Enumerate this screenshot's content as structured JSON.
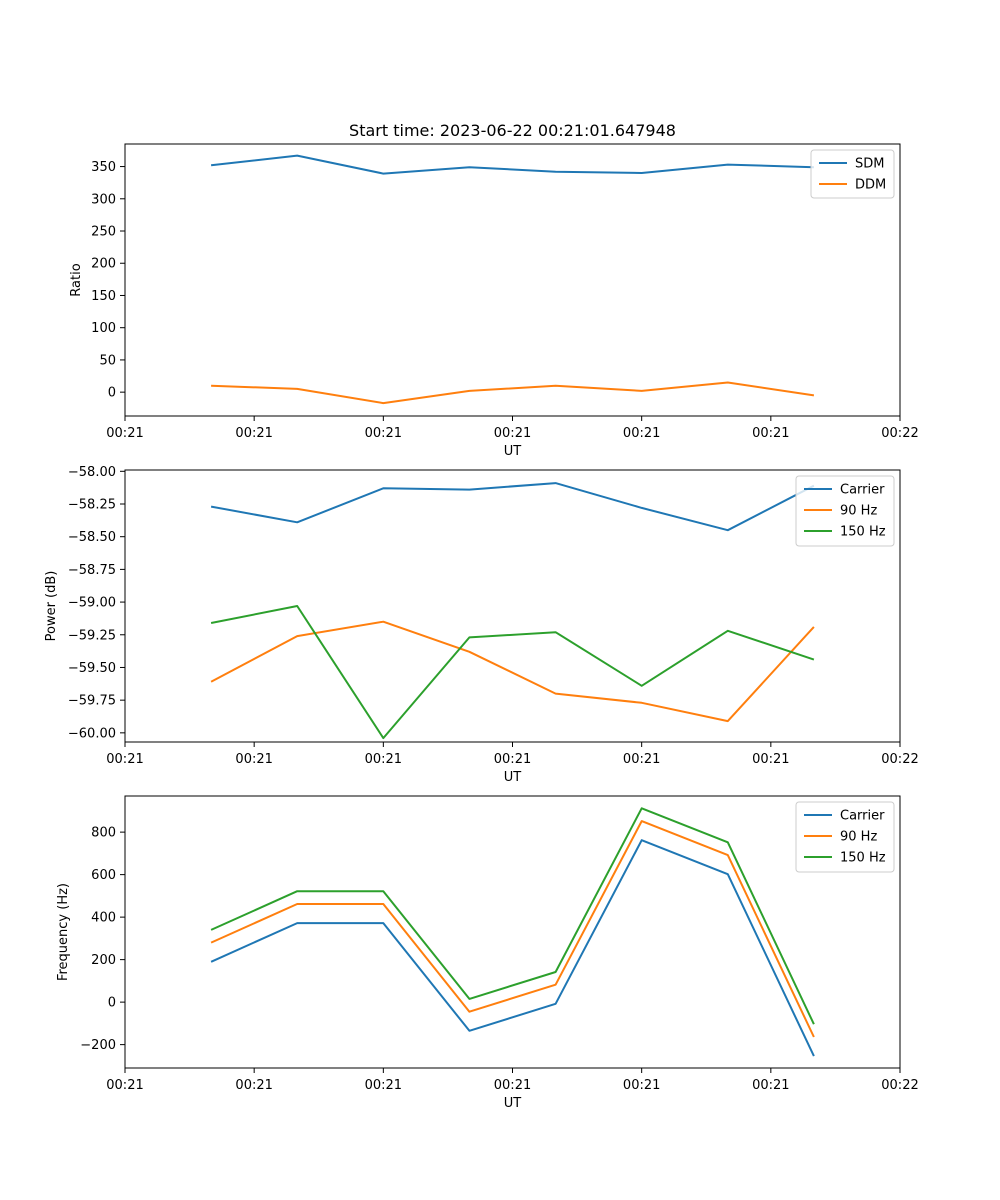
{
  "figure": {
    "title": "Start time: 2023-06-22 00:21:01.647948"
  },
  "chart_data": [
    {
      "type": "line",
      "title": "Start time: 2023-06-22 00:21:01.647948",
      "xlabel": "UT",
      "ylabel": "Ratio",
      "x": [
        1,
        2,
        3,
        4,
        5,
        6,
        7,
        8
      ],
      "xlim": [
        0,
        9
      ],
      "xticks": [
        {
          "v": 0,
          "label": "00:21"
        },
        {
          "v": 1.5,
          "label": "00:21"
        },
        {
          "v": 3,
          "label": "00:21"
        },
        {
          "v": 4.5,
          "label": "00:21"
        },
        {
          "v": 6,
          "label": "00:21"
        },
        {
          "v": 7.5,
          "label": "00:21"
        },
        {
          "v": 9,
          "label": "00:22"
        }
      ],
      "ylim": [
        -37,
        385
      ],
      "yticks": [
        {
          "v": 0,
          "label": "0"
        },
        {
          "v": 50,
          "label": "50"
        },
        {
          "v": 100,
          "label": "100"
        },
        {
          "v": 150,
          "label": "150"
        },
        {
          "v": 200,
          "label": "200"
        },
        {
          "v": 250,
          "label": "250"
        },
        {
          "v": 300,
          "label": "300"
        },
        {
          "v": 350,
          "label": "350"
        }
      ],
      "legend_position": "top-right",
      "series": [
        {
          "name": "SDM",
          "color": "#1f77b4",
          "values": [
            352,
            367,
            339,
            349,
            342,
            340,
            353,
            349
          ]
        },
        {
          "name": "DDM",
          "color": "#ff7f0e",
          "values": [
            10,
            5,
            -17,
            2,
            10,
            2,
            15,
            -5
          ]
        }
      ]
    },
    {
      "type": "line",
      "xlabel": "UT",
      "ylabel": "Power (dB)",
      "x": [
        1,
        2,
        3,
        4,
        5,
        6,
        7,
        8
      ],
      "xlim": [
        0,
        9
      ],
      "xticks": [
        {
          "v": 0,
          "label": "00:21"
        },
        {
          "v": 1.5,
          "label": "00:21"
        },
        {
          "v": 3,
          "label": "00:21"
        },
        {
          "v": 4.5,
          "label": "00:21"
        },
        {
          "v": 6,
          "label": "00:21"
        },
        {
          "v": 7.5,
          "label": "00:21"
        },
        {
          "v": 9,
          "label": "00:22"
        }
      ],
      "ylim": [
        -60.07,
        -57.99
      ],
      "yticks": [
        {
          "v": -60.0,
          "label": "−60.00"
        },
        {
          "v": -59.75,
          "label": "−59.75"
        },
        {
          "v": -59.5,
          "label": "−59.50"
        },
        {
          "v": -59.25,
          "label": "−59.25"
        },
        {
          "v": -59.0,
          "label": "−59.00"
        },
        {
          "v": -58.75,
          "label": "−58.75"
        },
        {
          "v": -58.5,
          "label": "−58.50"
        },
        {
          "v": -58.25,
          "label": "−58.25"
        },
        {
          "v": -58.0,
          "label": "−58.00"
        }
      ],
      "legend_position": "top-right",
      "series": [
        {
          "name": "Carrier",
          "color": "#1f77b4",
          "values": [
            -58.27,
            -58.39,
            -58.13,
            -58.14,
            -58.09,
            -58.28,
            -58.45,
            -58.11
          ]
        },
        {
          "name": "90 Hz",
          "color": "#ff7f0e",
          "values": [
            -59.61,
            -59.26,
            -59.15,
            -59.38,
            -59.7,
            -59.77,
            -59.91,
            -59.19
          ]
        },
        {
          "name": "150 Hz",
          "color": "#2ca02c",
          "values": [
            -59.16,
            -59.03,
            -60.04,
            -59.27,
            -59.23,
            -59.64,
            -59.22,
            -59.44
          ]
        }
      ]
    },
    {
      "type": "line",
      "xlabel": "UT",
      "ylabel": "Frequency (Hz)",
      "x": [
        1,
        2,
        3,
        4,
        5,
        6,
        7,
        8
      ],
      "xlim": [
        0,
        9
      ],
      "xticks": [
        {
          "v": 0,
          "label": "00:21"
        },
        {
          "v": 1.5,
          "label": "00:21"
        },
        {
          "v": 3,
          "label": "00:21"
        },
        {
          "v": 4.5,
          "label": "00:21"
        },
        {
          "v": 6,
          "label": "00:21"
        },
        {
          "v": 7.5,
          "label": "00:21"
        },
        {
          "v": 9,
          "label": "00:22"
        }
      ],
      "ylim": [
        -310,
        970
      ],
      "yticks": [
        {
          "v": -200,
          "label": "−200"
        },
        {
          "v": 0,
          "label": "0"
        },
        {
          "v": 200,
          "label": "200"
        },
        {
          "v": 400,
          "label": "400"
        },
        {
          "v": 600,
          "label": "600"
        },
        {
          "v": 800,
          "label": "800"
        }
      ],
      "legend_position": "top-right",
      "series": [
        {
          "name": "Carrier",
          "color": "#1f77b4",
          "values": [
            190,
            372,
            372,
            -135,
            -8,
            762,
            602,
            -254
          ]
        },
        {
          "name": "90 Hz",
          "color": "#ff7f0e",
          "values": [
            280,
            462,
            462,
            -45,
            82,
            852,
            692,
            -164
          ]
        },
        {
          "name": "150 Hz",
          "color": "#2ca02c",
          "values": [
            340,
            522,
            522,
            15,
            142,
            912,
            752,
            -104
          ]
        }
      ]
    }
  ]
}
